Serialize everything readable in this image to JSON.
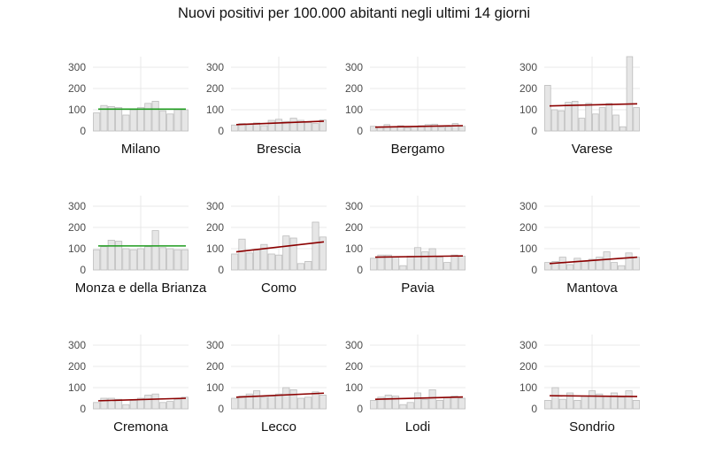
{
  "title": "Nuovi positivi per 100.000 abitanti negli ultimi 14 giorni",
  "colors": {
    "bar_fill": "#e6e6e6",
    "bar_stroke": "#bdbdbd",
    "grid": "#e8e8e8",
    "trend_up": "#8b0000",
    "trend_flat": "#1e9b1e",
    "axis_text": "#4d4d4d",
    "label_text": "#111111"
  },
  "chart_data": {
    "type": "bar",
    "facet": "small-multiples",
    "yticks": [
      "0",
      "100",
      "200",
      "300"
    ],
    "ylim": [
      0,
      350
    ],
    "panels": [
      {
        "name": "Milano",
        "trend_color": "flat",
        "trend": [
          103,
          103
        ],
        "values": [
          85,
          120,
          115,
          110,
          75,
          100,
          110,
          130,
          140,
          95,
          80,
          100,
          100
        ]
      },
      {
        "name": "Brescia",
        "trend_color": "up",
        "trend": [
          30,
          46
        ],
        "values": [
          28,
          35,
          30,
          38,
          25,
          50,
          55,
          45,
          60,
          50,
          40,
          35,
          52
        ]
      },
      {
        "name": "Bergamo",
        "trend_color": "up",
        "trend": [
          18,
          25
        ],
        "values": [
          22,
          20,
          30,
          18,
          25,
          15,
          20,
          25,
          30,
          32,
          18,
          20,
          35,
          22
        ]
      },
      {
        "name": "Varese",
        "trend_color": "up",
        "trend": [
          118,
          128
        ],
        "values": [
          215,
          100,
          95,
          135,
          140,
          60,
          130,
          80,
          110,
          130,
          75,
          20,
          350,
          110
        ]
      },
      {
        "name": "Monza e della Brianza",
        "trend_color": "flat",
        "trend": [
          113,
          113
        ],
        "values": [
          95,
          110,
          140,
          135,
          100,
          95,
          100,
          110,
          185,
          105,
          100,
          95,
          95
        ]
      },
      {
        "name": "Como",
        "trend_color": "up",
        "trend": [
          85,
          132
        ],
        "values": [
          75,
          145,
          80,
          95,
          120,
          75,
          70,
          160,
          150,
          30,
          40,
          225,
          155
        ]
      },
      {
        "name": "Pavia",
        "trend_color": "up",
        "trend": [
          60,
          66
        ],
        "values": [
          55,
          70,
          70,
          60,
          20,
          65,
          105,
          85,
          100,
          60,
          35,
          70,
          65
        ]
      },
      {
        "name": "Mantova",
        "trend_color": "up",
        "trend": [
          30,
          60
        ],
        "values": [
          35,
          40,
          60,
          25,
          55,
          40,
          50,
          60,
          85,
          35,
          20,
          80,
          60
        ]
      },
      {
        "name": "Cremona",
        "trend_color": "up",
        "trend": [
          38,
          50
        ],
        "values": [
          30,
          50,
          50,
          45,
          20,
          40,
          50,
          65,
          70,
          30,
          35,
          45,
          55
        ]
      },
      {
        "name": "Lecco",
        "trend_color": "up",
        "trend": [
          55,
          74
        ],
        "values": [
          50,
          60,
          70,
          85,
          55,
          60,
          70,
          100,
          90,
          50,
          55,
          80,
          65
        ]
      },
      {
        "name": "Lodi",
        "trend_color": "up",
        "trend": [
          45,
          56
        ],
        "values": [
          40,
          55,
          65,
          60,
          20,
          30,
          75,
          45,
          90,
          40,
          55,
          60,
          50
        ]
      },
      {
        "name": "Sondrio",
        "trend_color": "flat-red",
        "trend": [
          62,
          58
        ],
        "values": [
          40,
          100,
          45,
          75,
          40,
          60,
          85,
          70,
          60,
          75,
          55,
          85,
          40
        ]
      }
    ]
  }
}
